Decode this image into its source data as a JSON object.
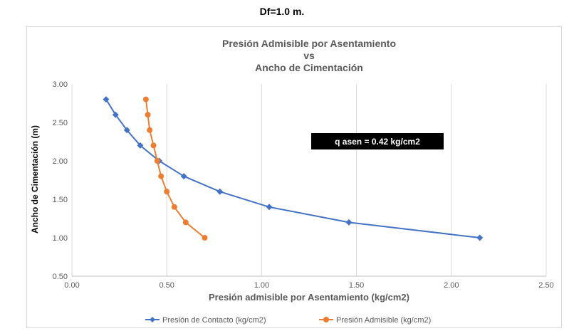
{
  "page_heading": "Df=1.0 m.",
  "chart_data": {
    "type": "scatter",
    "title_lines": [
      "Presión Admisible por Asentamiento",
      "vs",
      "Ancho de Cimentación"
    ],
    "xlabel": "Presión admisible por Asentamiento (kg/cm2)",
    "ylabel": "Ancho de Cimentación (m)",
    "xlim": [
      0,
      2.5
    ],
    "ylim": [
      0.5,
      3.0
    ],
    "x_ticks": [
      "0.00",
      "0.50",
      "1.00",
      "1.50",
      "2.00",
      "2.50"
    ],
    "y_ticks": [
      "0.50",
      "1.00",
      "1.50",
      "2.00",
      "2.50",
      "3.00"
    ],
    "grid": "vertical",
    "legend_position": "bottom",
    "annotation": "q asen = 0.42 kg/cm2",
    "series": [
      {
        "name": "Presión de Contacto (kg/cm2)",
        "color": "#4472c4",
        "marker": "diamond",
        "points": [
          [
            2.15,
            1.0
          ],
          [
            1.46,
            1.2
          ],
          [
            1.04,
            1.4
          ],
          [
            0.78,
            1.6
          ],
          [
            0.59,
            1.8
          ],
          [
            0.46,
            2.0
          ],
          [
            0.36,
            2.2
          ],
          [
            0.29,
            2.4
          ],
          [
            0.23,
            2.6
          ],
          [
            0.18,
            2.8
          ]
        ]
      },
      {
        "name": "Presión Admisible (kg/cm2)",
        "color": "#ed7d31",
        "marker": "circle",
        "points": [
          [
            0.7,
            1.0
          ],
          [
            0.6,
            1.2
          ],
          [
            0.54,
            1.4
          ],
          [
            0.5,
            1.6
          ],
          [
            0.47,
            1.8
          ],
          [
            0.45,
            2.0
          ],
          [
            0.43,
            2.2
          ],
          [
            0.41,
            2.4
          ],
          [
            0.4,
            2.6
          ],
          [
            0.39,
            2.8
          ]
        ]
      }
    ]
  }
}
